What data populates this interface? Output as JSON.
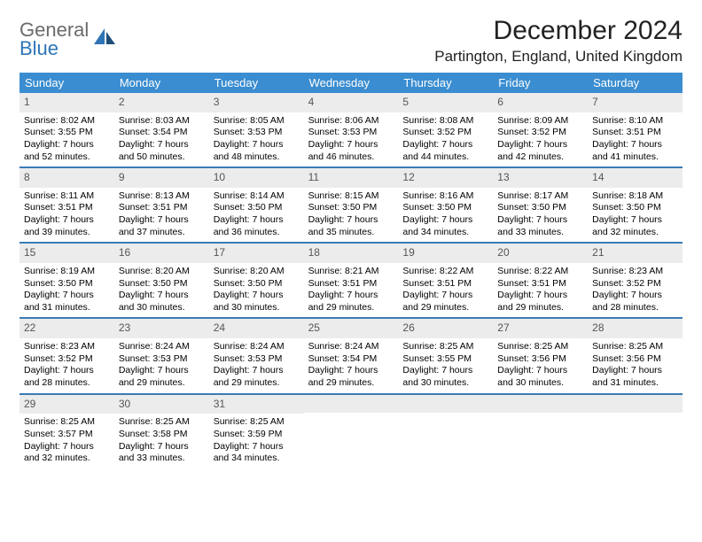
{
  "logo": {
    "word1": "General",
    "word2": "Blue"
  },
  "title": "December 2024",
  "location": "Partington, England, United Kingdom",
  "colors": {
    "header_bg": "#3a8dd0",
    "header_text": "#ffffff",
    "week_divider": "#3a7bb5",
    "daynum_bg": "#ececec",
    "daynum_text": "#555555",
    "body_text": "#000000",
    "logo_gray": "#6b6b6b",
    "logo_blue": "#2e75b6",
    "page_bg": "#ffffff"
  },
  "weekdays": [
    "Sunday",
    "Monday",
    "Tuesday",
    "Wednesday",
    "Thursday",
    "Friday",
    "Saturday"
  ],
  "weeks": [
    [
      {
        "n": "1",
        "sunrise": "Sunrise: 8:02 AM",
        "sunset": "Sunset: 3:55 PM",
        "day": "Daylight: 7 hours and 52 minutes."
      },
      {
        "n": "2",
        "sunrise": "Sunrise: 8:03 AM",
        "sunset": "Sunset: 3:54 PM",
        "day": "Daylight: 7 hours and 50 minutes."
      },
      {
        "n": "3",
        "sunrise": "Sunrise: 8:05 AM",
        "sunset": "Sunset: 3:53 PM",
        "day": "Daylight: 7 hours and 48 minutes."
      },
      {
        "n": "4",
        "sunrise": "Sunrise: 8:06 AM",
        "sunset": "Sunset: 3:53 PM",
        "day": "Daylight: 7 hours and 46 minutes."
      },
      {
        "n": "5",
        "sunrise": "Sunrise: 8:08 AM",
        "sunset": "Sunset: 3:52 PM",
        "day": "Daylight: 7 hours and 44 minutes."
      },
      {
        "n": "6",
        "sunrise": "Sunrise: 8:09 AM",
        "sunset": "Sunset: 3:52 PM",
        "day": "Daylight: 7 hours and 42 minutes."
      },
      {
        "n": "7",
        "sunrise": "Sunrise: 8:10 AM",
        "sunset": "Sunset: 3:51 PM",
        "day": "Daylight: 7 hours and 41 minutes."
      }
    ],
    [
      {
        "n": "8",
        "sunrise": "Sunrise: 8:11 AM",
        "sunset": "Sunset: 3:51 PM",
        "day": "Daylight: 7 hours and 39 minutes."
      },
      {
        "n": "9",
        "sunrise": "Sunrise: 8:13 AM",
        "sunset": "Sunset: 3:51 PM",
        "day": "Daylight: 7 hours and 37 minutes."
      },
      {
        "n": "10",
        "sunrise": "Sunrise: 8:14 AM",
        "sunset": "Sunset: 3:50 PM",
        "day": "Daylight: 7 hours and 36 minutes."
      },
      {
        "n": "11",
        "sunrise": "Sunrise: 8:15 AM",
        "sunset": "Sunset: 3:50 PM",
        "day": "Daylight: 7 hours and 35 minutes."
      },
      {
        "n": "12",
        "sunrise": "Sunrise: 8:16 AM",
        "sunset": "Sunset: 3:50 PM",
        "day": "Daylight: 7 hours and 34 minutes."
      },
      {
        "n": "13",
        "sunrise": "Sunrise: 8:17 AM",
        "sunset": "Sunset: 3:50 PM",
        "day": "Daylight: 7 hours and 33 minutes."
      },
      {
        "n": "14",
        "sunrise": "Sunrise: 8:18 AM",
        "sunset": "Sunset: 3:50 PM",
        "day": "Daylight: 7 hours and 32 minutes."
      }
    ],
    [
      {
        "n": "15",
        "sunrise": "Sunrise: 8:19 AM",
        "sunset": "Sunset: 3:50 PM",
        "day": "Daylight: 7 hours and 31 minutes."
      },
      {
        "n": "16",
        "sunrise": "Sunrise: 8:20 AM",
        "sunset": "Sunset: 3:50 PM",
        "day": "Daylight: 7 hours and 30 minutes."
      },
      {
        "n": "17",
        "sunrise": "Sunrise: 8:20 AM",
        "sunset": "Sunset: 3:50 PM",
        "day": "Daylight: 7 hours and 30 minutes."
      },
      {
        "n": "18",
        "sunrise": "Sunrise: 8:21 AM",
        "sunset": "Sunset: 3:51 PM",
        "day": "Daylight: 7 hours and 29 minutes."
      },
      {
        "n": "19",
        "sunrise": "Sunrise: 8:22 AM",
        "sunset": "Sunset: 3:51 PM",
        "day": "Daylight: 7 hours and 29 minutes."
      },
      {
        "n": "20",
        "sunrise": "Sunrise: 8:22 AM",
        "sunset": "Sunset: 3:51 PM",
        "day": "Daylight: 7 hours and 29 minutes."
      },
      {
        "n": "21",
        "sunrise": "Sunrise: 8:23 AM",
        "sunset": "Sunset: 3:52 PM",
        "day": "Daylight: 7 hours and 28 minutes."
      }
    ],
    [
      {
        "n": "22",
        "sunrise": "Sunrise: 8:23 AM",
        "sunset": "Sunset: 3:52 PM",
        "day": "Daylight: 7 hours and 28 minutes."
      },
      {
        "n": "23",
        "sunrise": "Sunrise: 8:24 AM",
        "sunset": "Sunset: 3:53 PM",
        "day": "Daylight: 7 hours and 29 minutes."
      },
      {
        "n": "24",
        "sunrise": "Sunrise: 8:24 AM",
        "sunset": "Sunset: 3:53 PM",
        "day": "Daylight: 7 hours and 29 minutes."
      },
      {
        "n": "25",
        "sunrise": "Sunrise: 8:24 AM",
        "sunset": "Sunset: 3:54 PM",
        "day": "Daylight: 7 hours and 29 minutes."
      },
      {
        "n": "26",
        "sunrise": "Sunrise: 8:25 AM",
        "sunset": "Sunset: 3:55 PM",
        "day": "Daylight: 7 hours and 30 minutes."
      },
      {
        "n": "27",
        "sunrise": "Sunrise: 8:25 AM",
        "sunset": "Sunset: 3:56 PM",
        "day": "Daylight: 7 hours and 30 minutes."
      },
      {
        "n": "28",
        "sunrise": "Sunrise: 8:25 AM",
        "sunset": "Sunset: 3:56 PM",
        "day": "Daylight: 7 hours and 31 minutes."
      }
    ],
    [
      {
        "n": "29",
        "sunrise": "Sunrise: 8:25 AM",
        "sunset": "Sunset: 3:57 PM",
        "day": "Daylight: 7 hours and 32 minutes."
      },
      {
        "n": "30",
        "sunrise": "Sunrise: 8:25 AM",
        "sunset": "Sunset: 3:58 PM",
        "day": "Daylight: 7 hours and 33 minutes."
      },
      {
        "n": "31",
        "sunrise": "Sunrise: 8:25 AM",
        "sunset": "Sunset: 3:59 PM",
        "day": "Daylight: 7 hours and 34 minutes."
      },
      {
        "empty": true
      },
      {
        "empty": true
      },
      {
        "empty": true
      },
      {
        "empty": true
      }
    ]
  ]
}
